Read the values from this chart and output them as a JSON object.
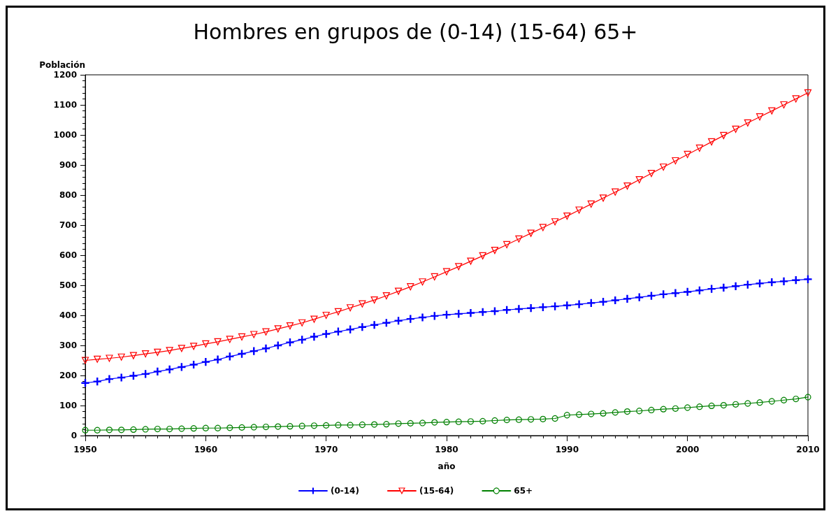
{
  "chart_data": {
    "type": "line",
    "title": "Hombres en grupos de (0-14) (15-64) 65+",
    "xlabel": "año",
    "ylabel": "Población",
    "x": [
      1950,
      1951,
      1952,
      1953,
      1954,
      1955,
      1956,
      1957,
      1958,
      1959,
      1960,
      1961,
      1962,
      1963,
      1964,
      1965,
      1966,
      1967,
      1968,
      1969,
      1970,
      1971,
      1972,
      1973,
      1974,
      1975,
      1976,
      1977,
      1978,
      1979,
      1980,
      1981,
      1982,
      1983,
      1984,
      1985,
      1986,
      1987,
      1988,
      1989,
      1990,
      1991,
      1992,
      1993,
      1994,
      1995,
      1996,
      1997,
      1998,
      1999,
      2000,
      2001,
      2002,
      2003,
      2004,
      2005,
      2006,
      2007,
      2008,
      2009,
      2010
    ],
    "series": [
      {
        "name": "(0-14)",
        "color": "#0000ff",
        "marker": "cross",
        "values": [
          175,
          180,
          188,
          193,
          199,
          205,
          213,
          220,
          228,
          236,
          245,
          253,
          263,
          272,
          281,
          290,
          300,
          310,
          319,
          329,
          338,
          346,
          353,
          361,
          368,
          375,
          382,
          388,
          393,
          398,
          402,
          405,
          408,
          411,
          414,
          418,
          421,
          424,
          427,
          430,
          433,
          437,
          441,
          445,
          450,
          455,
          460,
          465,
          470,
          474,
          478,
          483,
          488,
          492,
          497,
          502,
          506,
          510,
          513,
          517,
          520
        ]
      },
      {
        "name": "(15-64)",
        "color": "#ff0000",
        "marker": "triangle",
        "values": [
          250,
          254,
          257,
          261,
          266,
          272,
          277,
          283,
          290,
          297,
          305,
          312,
          320,
          328,
          336,
          345,
          355,
          365,
          375,
          387,
          400,
          412,
          425,
          438,
          451,
          465,
          480,
          495,
          511,
          528,
          545,
          562,
          580,
          598,
          616,
          635,
          654,
          673,
          692,
          711,
          730,
          750,
          770,
          790,
          810,
          830,
          851,
          872,
          893,
          914,
          935,
          956,
          977,
          998,
          1019,
          1040,
          1060,
          1080,
          1100,
          1120,
          1140
        ]
      },
      {
        "name": "65+",
        "color": "#008000",
        "marker": "circle",
        "values": [
          18,
          18,
          19,
          19,
          20,
          21,
          22,
          22,
          23,
          24,
          25,
          25,
          26,
          27,
          28,
          29,
          30,
          31,
          32,
          33,
          34,
          35,
          35,
          36,
          37,
          38,
          40,
          41,
          42,
          44,
          45,
          46,
          47,
          48,
          50,
          52,
          53,
          54,
          55,
          57,
          68,
          70,
          72,
          74,
          77,
          80,
          82,
          85,
          88,
          90,
          93,
          96,
          99,
          101,
          104,
          107,
          110,
          114,
          118,
          122,
          128
        ]
      }
    ],
    "xlim": [
      1950,
      2010
    ],
    "xticks": [
      1950,
      1960,
      1970,
      1980,
      1990,
      2000,
      2010
    ],
    "ylim": [
      0,
      1200
    ],
    "yticks": [
      0,
      100,
      200,
      300,
      400,
      500,
      600,
      700,
      800,
      900,
      1000,
      1100,
      1200
    ],
    "grid": false,
    "legend": "bottom",
    "line_style": "solid"
  }
}
